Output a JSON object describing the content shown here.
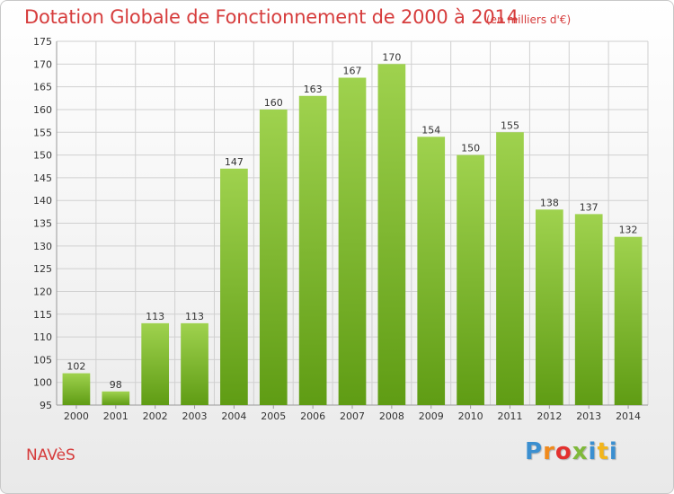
{
  "title": "Dotation Globale de Fonctionnement de 2000 à 2014",
  "subtitle": "(en milliers d'€)",
  "commune": "NAVèS",
  "logo": {
    "text": "Proxiti",
    "colors": [
      "#3b8fd0",
      "#f08a1c",
      "#e3312f",
      "#7fb93a",
      "#3b8fd0",
      "#f2b51c"
    ]
  },
  "colors": {
    "title": "#d63c3c",
    "bar_top": "#9fd24e",
    "bar_bottom": "#5f9c14",
    "grid": "#d0d0d0",
    "axis_text": "#333333"
  },
  "chart_data": {
    "type": "bar",
    "title": "Dotation Globale de Fonctionnement de 2000 à 2014",
    "subtitle": "(en milliers d'€)",
    "xlabel": "",
    "ylabel": "",
    "categories": [
      "2000",
      "2001",
      "2002",
      "2003",
      "2004",
      "2005",
      "2006",
      "2007",
      "2008",
      "2009",
      "2010",
      "2011",
      "2012",
      "2013",
      "2014"
    ],
    "values": [
      102,
      98,
      113,
      113,
      147,
      160,
      163,
      167,
      170,
      154,
      150,
      155,
      138,
      137,
      132
    ],
    "ylim": [
      95,
      175
    ],
    "ytick_step": 5,
    "grid": true
  }
}
